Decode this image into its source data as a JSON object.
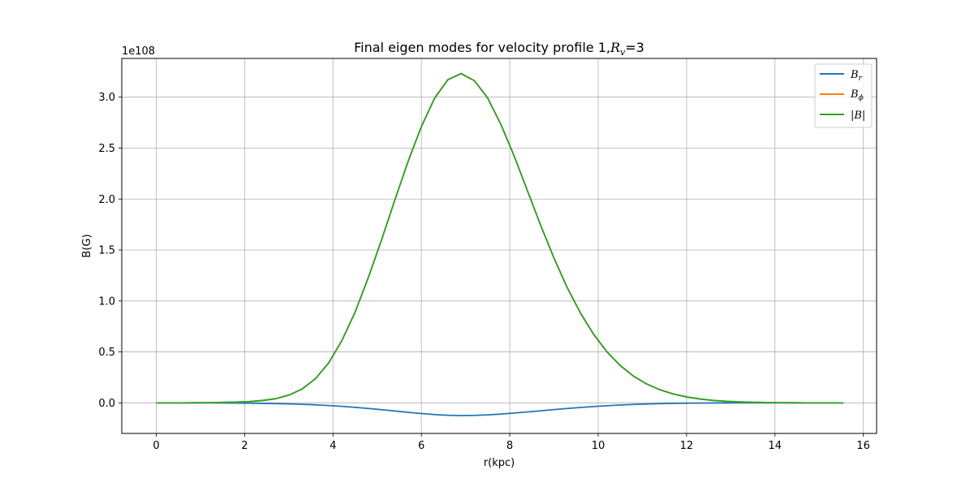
{
  "chart_data": {
    "type": "line",
    "title": "Final eigen modes for velocity profile 1,",
    "title_math": "R",
    "title_math_sub": "v",
    "title_suffix": "=3",
    "xlabel": "r(kpc)",
    "ylabel": "B(G)",
    "y_offset_text": "1e108",
    "xlim": [
      -0.78,
      16.3
    ],
    "ylim": [
      -0.3,
      3.38
    ],
    "xticks": [
      0,
      2,
      4,
      6,
      8,
      10,
      12,
      14,
      16
    ],
    "yticks": [
      0.0,
      0.5,
      1.0,
      1.5,
      2.0,
      2.5,
      3.0
    ],
    "xtick_labels": [
      "0",
      "2",
      "4",
      "6",
      "8",
      "10",
      "12",
      "14",
      "16"
    ],
    "ytick_labels": [
      "0.0",
      "0.5",
      "1.0",
      "1.5",
      "2.0",
      "2.5",
      "3.0"
    ],
    "grid": true,
    "legend_position": "top-right",
    "legend": {
      "br_base": "B",
      "br_sub": "r",
      "bphi_base": "B",
      "bphi_sub": "ϕ",
      "babs": "|B|"
    },
    "x": [
      0.0,
      0.3,
      0.6,
      0.9,
      1.2,
      1.5,
      1.8,
      2.1,
      2.4,
      2.7,
      3.0,
      3.3,
      3.6,
      3.9,
      4.2,
      4.5,
      4.8,
      5.1,
      5.4,
      5.7,
      6.0,
      6.3,
      6.6,
      6.9,
      7.2,
      7.5,
      7.8,
      8.1,
      8.4,
      8.7,
      9.0,
      9.3,
      9.6,
      9.9,
      10.2,
      10.5,
      10.8,
      11.1,
      11.4,
      11.7,
      12.0,
      12.3,
      12.6,
      12.9,
      13.2,
      13.5,
      13.8,
      14.1,
      14.4,
      14.7,
      15.0,
      15.3,
      15.55
    ],
    "series": [
      {
        "name": "B_r",
        "color": "#1f77b4",
        "values": [
          0.0,
          0.0,
          0.0,
          0.0,
          0.0,
          -0.001,
          -0.002,
          -0.003,
          -0.005,
          -0.007,
          -0.01,
          -0.014,
          -0.019,
          -0.026,
          -0.034,
          -0.044,
          -0.055,
          -0.067,
          -0.08,
          -0.093,
          -0.105,
          -0.115,
          -0.122,
          -0.125,
          -0.123,
          -0.118,
          -0.11,
          -0.1,
          -0.089,
          -0.078,
          -0.066,
          -0.055,
          -0.045,
          -0.036,
          -0.028,
          -0.021,
          -0.015,
          -0.011,
          -0.007,
          -0.005,
          -0.003,
          -0.002,
          -0.001,
          -0.001,
          0.0,
          0.0,
          0.0,
          0.0,
          0.0,
          0.0,
          0.0,
          0.0,
          0.0
        ]
      },
      {
        "name": "B_phi",
        "color": "#ff7f0e",
        "values": [
          0.0,
          0.0,
          0.0,
          0.001,
          0.002,
          0.004,
          0.007,
          0.012,
          0.022,
          0.04,
          0.075,
          0.135,
          0.235,
          0.39,
          0.61,
          0.89,
          1.23,
          1.6,
          1.99,
          2.37,
          2.71,
          2.99,
          3.17,
          3.23,
          3.16,
          2.99,
          2.73,
          2.42,
          2.08,
          1.74,
          1.42,
          1.13,
          0.88,
          0.67,
          0.5,
          0.365,
          0.262,
          0.185,
          0.128,
          0.087,
          0.058,
          0.038,
          0.024,
          0.015,
          0.009,
          0.005,
          0.003,
          0.002,
          0.001,
          0.0,
          0.0,
          0.0,
          0.0
        ]
      },
      {
        "name": "|B|",
        "color": "#2ca02c",
        "values": [
          0.0,
          0.0,
          0.0,
          0.001,
          0.002,
          0.004,
          0.007,
          0.012,
          0.023,
          0.041,
          0.076,
          0.136,
          0.236,
          0.391,
          0.611,
          0.891,
          1.231,
          1.601,
          1.992,
          2.372,
          2.712,
          2.992,
          3.172,
          3.232,
          3.162,
          2.992,
          2.732,
          2.422,
          2.082,
          1.742,
          1.422,
          1.131,
          0.881,
          0.671,
          0.501,
          0.366,
          0.262,
          0.185,
          0.128,
          0.087,
          0.058,
          0.038,
          0.024,
          0.015,
          0.009,
          0.005,
          0.003,
          0.002,
          0.001,
          0.0,
          0.0,
          0.0,
          0.0
        ]
      }
    ]
  }
}
